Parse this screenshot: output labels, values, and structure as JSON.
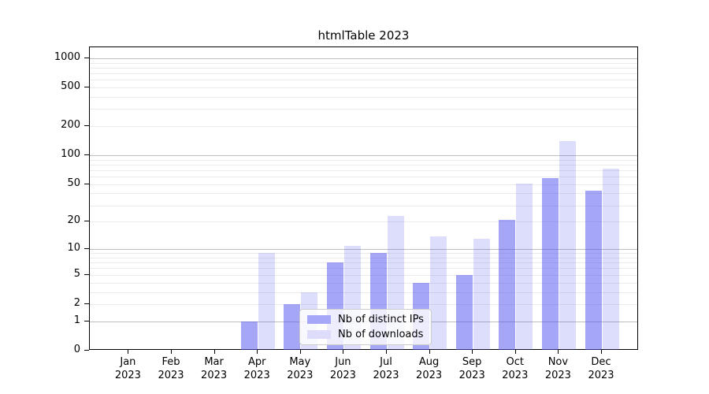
{
  "chart_data": {
    "type": "bar",
    "title": "htmlTable 2023",
    "categories": [
      "Jan",
      "Feb",
      "Mar",
      "Apr",
      "May",
      "Jun",
      "Jul",
      "Aug",
      "Sep",
      "Oct",
      "Nov",
      "Dec"
    ],
    "year_label": "2023",
    "series": [
      {
        "name": "Nb of distinct IPs",
        "values": [
          0,
          0,
          0,
          1,
          2,
          7,
          9,
          4,
          5,
          21,
          58,
          43
        ],
        "fill": "rgba(85,85,240,0.52)",
        "swatch": "#a7a7f7"
      },
      {
        "name": "Nb of downloads",
        "values": [
          0,
          0,
          0,
          9,
          3,
          11,
          23,
          14,
          13,
          51,
          140,
          73
        ],
        "fill": "rgba(85,85,240,0.20)",
        "swatch": "#dddcfb"
      }
    ],
    "y_ticks": [
      0,
      1,
      2,
      5,
      10,
      20,
      50,
      100,
      200,
      500,
      1000
    ],
    "ylim": [
      0,
      1000
    ],
    "yscale": "log1p",
    "xlabel": "",
    "ylabel": "",
    "grid": true,
    "legend_position": "lower center",
    "colors": {
      "major_grid": "#bdbdbd",
      "minor_grid": "#ebebeb",
      "axis": "#000000",
      "text": "#000000",
      "background": "#ffffff"
    }
  }
}
